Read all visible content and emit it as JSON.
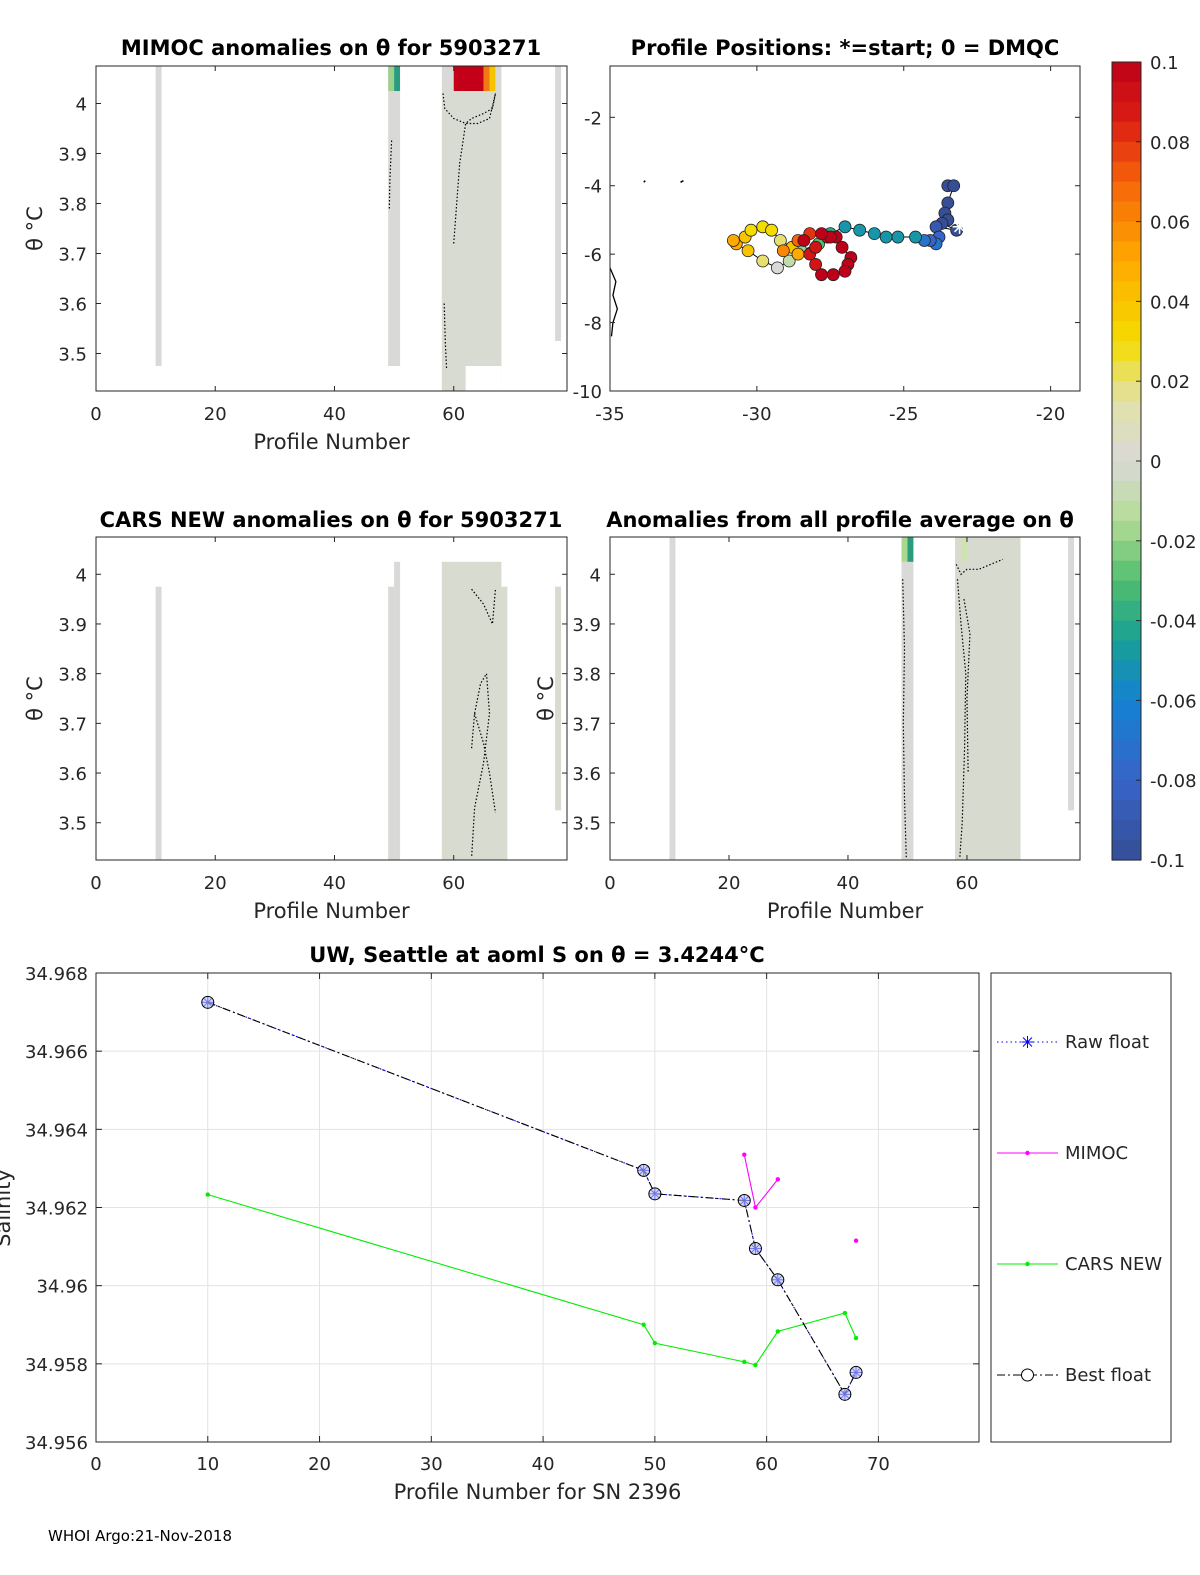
{
  "footer": "WHOI Argo:21-Nov-2018",
  "chart_data": [
    {
      "id": "mimoc",
      "type": "heatmap",
      "title": "MIMOC anomalies on θ  for 5903271",
      "xlabel": "Profile Number",
      "ylabel": "θ °C",
      "xlim": [
        0,
        79
      ],
      "ylim": [
        3.425,
        4.075
      ],
      "xticks": [
        0,
        20,
        40,
        60
      ],
      "yticks": [
        3.5,
        3.6,
        3.7,
        3.8,
        3.9,
        4.0
      ],
      "ytick_labels": [
        "3.5",
        "3.6",
        "3.7",
        "3.8",
        "3.9",
        "4"
      ],
      "columns": [
        {
          "x0": 10,
          "x1": 11,
          "ymin": 3.475,
          "ymax": 4.075,
          "color": "#d9d9d7"
        },
        {
          "x0": 49,
          "x1": 51,
          "ymin": 3.475,
          "ymax": 4.025,
          "color": "#d9d9d7"
        },
        {
          "x0": 58,
          "x1": 68,
          "ymin": 3.425,
          "ymax": 4.025,
          "color": "#d8dbd2"
        },
        {
          "x0": 77,
          "x1": 78,
          "ymin": 3.525,
          "ymax": 4.075,
          "color": "#d9d9d7"
        }
      ],
      "cells": [
        {
          "x0": 49,
          "x1": 50,
          "y0": 4.025,
          "y1": 4.075,
          "color": "#9ed08d"
        },
        {
          "x0": 50,
          "x1": 51,
          "y0": 4.025,
          "y1": 4.075,
          "color": "#2a9d7f"
        },
        {
          "x0": 58,
          "x1": 60,
          "y0": 4.025,
          "y1": 4.075,
          "color": "#d9d9d7"
        },
        {
          "x0": 60,
          "x1": 65,
          "y0": 4.025,
          "y1": 4.075,
          "color": "#c40018"
        },
        {
          "x0": 65,
          "x1": 66,
          "y0": 4.025,
          "y1": 4.075,
          "color": "#f07a12"
        },
        {
          "x0": 66,
          "x1": 67,
          "y0": 4.025,
          "y1": 4.075,
          "color": "#f5c400"
        },
        {
          "x0": 67,
          "x1": 68,
          "y0": 4.025,
          "y1": 4.075,
          "color": "#d9d9d7"
        },
        {
          "x0": 62,
          "x1": 68,
          "y0": 3.425,
          "y1": 3.475,
          "color": "#ffffff"
        }
      ],
      "contours": [
        [
          [
            58.2,
            4.02
          ],
          [
            58.5,
            3.99
          ],
          [
            60,
            3.97
          ],
          [
            62,
            3.96
          ],
          [
            64,
            3.96
          ],
          [
            66,
            3.97
          ],
          [
            67,
            4.02
          ]
        ],
        [
          [
            61,
            3.88
          ],
          [
            61.5,
            3.92
          ],
          [
            62,
            3.96
          ],
          [
            63,
            3.97
          ],
          [
            65,
            3.98
          ],
          [
            66.5,
            3.99
          ],
          [
            67,
            4.02
          ]
        ],
        [
          [
            49.2,
            3.79
          ],
          [
            49.3,
            3.85
          ],
          [
            49.6,
            3.93
          ]
        ],
        [
          [
            58.4,
            3.6
          ],
          [
            58.6,
            3.52
          ],
          [
            58.8,
            3.47
          ]
        ],
        [
          [
            60,
            3.72
          ],
          [
            60.5,
            3.8
          ],
          [
            61,
            3.88
          ]
        ]
      ]
    },
    {
      "id": "positions",
      "type": "scatter",
      "title": "Profile Positions: *=start; 0 = DMQC",
      "xlim": [
        -35,
        -19
      ],
      "ylim": [
        -10,
        -0.5
      ],
      "xticks": [
        -35,
        -30,
        -25,
        -20
      ],
      "yticks": [
        -10,
        -8,
        -6,
        -4,
        -2
      ],
      "colorbar": {
        "min": -0.1,
        "max": 0.1,
        "ticks": [
          "-0.1",
          "-0.08",
          "-0.06",
          "-0.04",
          "-0.02",
          "0",
          "0.02",
          "0.04",
          "0.06",
          "0.08",
          "0.1"
        ]
      },
      "start": [
        -23.1,
        -5.2
      ],
      "points": [
        [
          -23.5,
          -4.0,
          -0.1
        ],
        [
          -23.3,
          -4.0,
          -0.1
        ],
        [
          -23.5,
          -4.5,
          -0.1
        ],
        [
          -23.6,
          -4.8,
          -0.1
        ],
        [
          -23.5,
          -5.0,
          -0.1
        ],
        [
          -23.7,
          -5.1,
          -0.1
        ],
        [
          -23.2,
          -5.3,
          -0.1
        ],
        [
          -23.9,
          -5.2,
          -0.09
        ],
        [
          -23.8,
          -5.5,
          -0.08
        ],
        [
          -23.9,
          -5.7,
          -0.07
        ],
        [
          -24.1,
          -5.6,
          -0.08
        ],
        [
          -24.3,
          -5.6,
          -0.07
        ],
        [
          -24.6,
          -5.5,
          -0.05
        ],
        [
          -25.2,
          -5.5,
          -0.05
        ],
        [
          -25.6,
          -5.5,
          -0.05
        ],
        [
          -26.0,
          -5.4,
          -0.05
        ],
        [
          -26.5,
          -5.3,
          -0.05
        ],
        [
          -27.0,
          -5.2,
          -0.05
        ],
        [
          -27.5,
          -5.4,
          -0.04
        ],
        [
          -27.9,
          -5.7,
          -0.03
        ],
        [
          -28.5,
          -5.9,
          -0.02
        ],
        [
          -28.9,
          -6.2,
          -0.01
        ],
        [
          -29.3,
          -6.4,
          0.0
        ],
        [
          -29.8,
          -6.2,
          0.02
        ],
        [
          -30.3,
          -5.9,
          0.04
        ],
        [
          -30.7,
          -5.7,
          0.05
        ],
        [
          -30.8,
          -5.6,
          0.05
        ],
        [
          -30.4,
          -5.5,
          0.04
        ],
        [
          -30.2,
          -5.3,
          0.03
        ],
        [
          -29.8,
          -5.2,
          0.03
        ],
        [
          -29.5,
          -5.3,
          0.03
        ],
        [
          -29.2,
          -5.6,
          0.02
        ],
        [
          -28.8,
          -5.8,
          0.04
        ],
        [
          -28.6,
          -6.0,
          0.05
        ],
        [
          -29.1,
          -5.9,
          0.06
        ],
        [
          -28.6,
          -5.6,
          0.07
        ],
        [
          -28.2,
          -5.4,
          0.08
        ],
        [
          -27.6,
          -5.5,
          0.09
        ],
        [
          -27.3,
          -5.5,
          0.1
        ],
        [
          -27.1,
          -5.8,
          0.1
        ],
        [
          -26.8,
          -6.1,
          0.1
        ],
        [
          -26.9,
          -6.3,
          0.1
        ],
        [
          -27.0,
          -6.5,
          0.1
        ],
        [
          -27.4,
          -6.6,
          0.1
        ],
        [
          -27.8,
          -6.6,
          0.1
        ],
        [
          -28.0,
          -6.3,
          0.09
        ],
        [
          -28.2,
          -6.0,
          0.09
        ],
        [
          -28.0,
          -5.8,
          0.09
        ],
        [
          -27.5,
          -5.5,
          0.1
        ],
        [
          -27.8,
          -5.4,
          0.1
        ],
        [
          -28.4,
          -5.6,
          0.1
        ]
      ]
    },
    {
      "id": "cars",
      "type": "heatmap",
      "title": "CARS NEW anomalies on θ for 5903271",
      "xlabel": "Profile Number",
      "ylabel": "θ °C",
      "xlim": [
        0,
        79
      ],
      "ylim": [
        3.425,
        4.075
      ],
      "xticks": [
        0,
        20,
        40,
        60
      ],
      "yticks": [
        3.5,
        3.6,
        3.7,
        3.8,
        3.9,
        4.0
      ],
      "ytick_labels": [
        "3.5",
        "3.6",
        "3.7",
        "3.8",
        "3.9",
        "4"
      ],
      "columns": [
        {
          "x0": 10,
          "x1": 11,
          "ymin": 3.425,
          "ymax": 3.975,
          "color": "#d9d9d7"
        },
        {
          "x0": 49,
          "x1": 50,
          "ymin": 3.425,
          "ymax": 3.975,
          "color": "#d9d9d7"
        },
        {
          "x0": 50,
          "x1": 51,
          "ymin": 3.425,
          "ymax": 4.025,
          "color": "#d9d9d7"
        },
        {
          "x0": 58,
          "x1": 68,
          "ymin": 3.425,
          "ymax": 4.025,
          "color": "#d7dbd0"
        },
        {
          "x0": 68,
          "x1": 69,
          "ymin": 3.425,
          "ymax": 3.975,
          "color": "#d7dbd0"
        },
        {
          "x0": 77,
          "x1": 78,
          "ymin": 3.525,
          "ymax": 3.975,
          "color": "#d7dbd0"
        }
      ],
      "cells": [],
      "contours": [
        [
          [
            63,
            3.97
          ],
          [
            65,
            3.94
          ],
          [
            66.5,
            3.9
          ],
          [
            67,
            3.97
          ]
        ],
        [
          [
            63,
            3.65
          ],
          [
            63.5,
            3.72
          ],
          [
            64.5,
            3.78
          ],
          [
            65.5,
            3.8
          ],
          [
            66,
            3.72
          ],
          [
            65,
            3.62
          ],
          [
            63.5,
            3.53
          ],
          [
            63,
            3.43
          ]
        ],
        [
          [
            63.5,
            3.72
          ],
          [
            65,
            3.66
          ],
          [
            66,
            3.6
          ],
          [
            67,
            3.52
          ]
        ]
      ]
    },
    {
      "id": "all_profile",
      "type": "heatmap",
      "title": "Anomalies from all profile average on θ",
      "xlabel": "Profile Number",
      "ylabel": "θ °C",
      "xlim": [
        0,
        79
      ],
      "ylim": [
        3.425,
        4.075
      ],
      "xticks": [
        0,
        20,
        40,
        60
      ],
      "yticks": [
        3.5,
        3.6,
        3.7,
        3.8,
        3.9,
        4.0
      ],
      "ytick_labels": [
        "3.5",
        "3.6",
        "3.7",
        "3.8",
        "3.9",
        "4"
      ],
      "columns": [
        {
          "x0": 10,
          "x1": 11,
          "ymin": 3.425,
          "ymax": 4.075,
          "color": "#d9d9d7"
        },
        {
          "x0": 49,
          "x1": 51,
          "ymin": 3.425,
          "ymax": 4.025,
          "color": "#d9d9d7"
        },
        {
          "x0": 58,
          "x1": 69,
          "ymin": 3.425,
          "ymax": 4.075,
          "color": "#d6dacf"
        },
        {
          "x0": 77,
          "x1": 78,
          "ymin": 3.525,
          "ymax": 4.075,
          "color": "#d9d9d7"
        }
      ],
      "cells": [
        {
          "x0": 49,
          "x1": 50,
          "y0": 4.025,
          "y1": 4.075,
          "color": "#a9d88e"
        },
        {
          "x0": 50,
          "x1": 51,
          "y0": 4.025,
          "y1": 4.075,
          "color": "#2a9d7f"
        },
        {
          "x0": 59,
          "x1": 60,
          "y0": 4.025,
          "y1": 4.075,
          "color": "#cfe2b0"
        }
      ],
      "contours": [
        [
          [
            49.2,
            3.99
          ],
          [
            49.5,
            3.85
          ],
          [
            49.3,
            3.7
          ],
          [
            49.5,
            3.55
          ],
          [
            49.8,
            3.43
          ]
        ],
        [
          [
            58.2,
            4.02
          ],
          [
            59,
            4.0
          ],
          [
            60,
            4.01
          ],
          [
            62,
            4.01
          ],
          [
            64,
            4.02
          ],
          [
            66,
            4.03
          ]
        ],
        [
          [
            58.4,
            3.99
          ],
          [
            59,
            3.9
          ],
          [
            59.8,
            3.8
          ],
          [
            59.6,
            3.65
          ],
          [
            59.2,
            3.5
          ],
          [
            58.8,
            3.43
          ]
        ],
        [
          [
            59.5,
            3.95
          ],
          [
            60.5,
            3.88
          ],
          [
            60,
            3.75
          ],
          [
            60.2,
            3.6
          ]
        ]
      ]
    },
    {
      "id": "salinity",
      "type": "line",
      "title": "UW, Seattle at aoml S on θ = 3.4244°C",
      "xlabel": "Profile Number for SN 2396",
      "ylabel": "Salinity",
      "xlim": [
        0,
        79
      ],
      "ylim": [
        34.956,
        34.968
      ],
      "xticks": [
        0,
        10,
        20,
        30,
        40,
        50,
        60,
        70
      ],
      "yticks": [
        34.956,
        34.958,
        34.96,
        34.962,
        34.964,
        34.966,
        34.968
      ],
      "ytick_labels": [
        "34.956",
        "34.958",
        "34.96",
        "34.962",
        "34.964",
        "34.966",
        "34.968"
      ],
      "series": [
        {
          "name": "Raw float",
          "color": "#0000ff",
          "style": "dotted",
          "marker": "star",
          "x": [
            10,
            49,
            50,
            58,
            59,
            61,
            67,
            68
          ],
          "y": [
            34.96725,
            34.96295,
            34.96235,
            34.96218,
            34.96095,
            34.96015,
            34.95722,
            34.95778
          ]
        },
        {
          "name": "MIMOC",
          "color": "#ff00ff",
          "style": "solid",
          "marker": "dot",
          "segments": [
            [
              [
                58,
                34.96335
              ],
              [
                59,
                34.962
              ],
              [
                61,
                34.96272
              ]
            ],
            [
              [
                68,
                34.96115
              ]
            ]
          ]
        },
        {
          "name": "CARS NEW",
          "color": "#00ee00",
          "style": "solid",
          "marker": "dot",
          "x": [
            10,
            49,
            50,
            58,
            59,
            61,
            67,
            68
          ],
          "y": [
            34.96233,
            34.959,
            34.95853,
            34.95805,
            34.95797,
            34.95883,
            34.9593,
            34.95866
          ]
        },
        {
          "name": "Best float",
          "color": "#000000",
          "style": "dashdot",
          "marker": "circle",
          "x": [
            10,
            49,
            50,
            58,
            59,
            61,
            67,
            68
          ],
          "y": [
            34.96725,
            34.96295,
            34.96235,
            34.96218,
            34.96095,
            34.96015,
            34.95722,
            34.95778
          ]
        }
      ]
    }
  ]
}
